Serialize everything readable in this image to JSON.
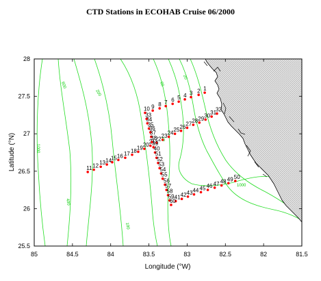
{
  "title": "CTD Stations in ECOHAB  Cruise 06/2000",
  "colors": {
    "contour": "#22dd22",
    "station": "#ff0000",
    "land": "#d8d8d8",
    "coast": "#000000"
  },
  "chart_data": {
    "type": "scatter",
    "xlabel": "Longitude (°W)",
    "ylabel": "Latitude (°N)",
    "xlim": [
      85,
      81.5
    ],
    "ylim": [
      25.5,
      28
    ],
    "xticks": [
      "85",
      "84.5",
      "84",
      "83.5",
      "83",
      "82.5",
      "82",
      "81.5"
    ],
    "yticks": [
      "25.5",
      "26",
      "26.5",
      "27",
      "27.5",
      "28"
    ],
    "contour_labels": [
      "1000",
      "600",
      "400",
      "200",
      "100",
      "60",
      "40",
      "20"
    ],
    "stations": [
      {
        "label": "1",
        "lon": 82.77,
        "lat": 27.55
      },
      {
        "label": "2",
        "lon": 82.85,
        "lat": 27.52
      },
      {
        "label": "3",
        "lon": 82.95,
        "lat": 27.49
      },
      {
        "label": "4",
        "lon": 83.03,
        "lat": 27.46
      },
      {
        "label": "5",
        "lon": 83.11,
        "lat": 27.43
      },
      {
        "label": "6",
        "lon": 83.19,
        "lat": 27.4
      },
      {
        "label": "7",
        "lon": 83.28,
        "lat": 27.37
      },
      {
        "label": "8",
        "lon": 83.36,
        "lat": 27.34
      },
      {
        "label": "9",
        "lon": 83.45,
        "lat": 27.31
      },
      {
        "label": "10",
        "lon": 83.55,
        "lat": 27.28
      },
      {
        "label": "11",
        "lon": 84.3,
        "lat": 26.49
      },
      {
        "label": "12",
        "lon": 84.22,
        "lat": 26.52
      },
      {
        "label": "13",
        "lon": 84.13,
        "lat": 26.56
      },
      {
        "label": "14",
        "lon": 84.05,
        "lat": 26.59
      },
      {
        "label": "15",
        "lon": 83.98,
        "lat": 26.62
      },
      {
        "label": "16",
        "lon": 83.9,
        "lat": 26.65
      },
      {
        "label": "17",
        "lon": 83.81,
        "lat": 26.68
      },
      {
        "label": "18",
        "lon": 83.72,
        "lat": 26.72
      },
      {
        "label": "19",
        "lon": 83.64,
        "lat": 26.76
      },
      {
        "label": "20",
        "lon": 83.56,
        "lat": 26.8
      },
      {
        "label": "21",
        "lon": 83.48,
        "lat": 26.84
      },
      {
        "label": "22",
        "lon": 83.4,
        "lat": 26.88
      },
      {
        "label": "23",
        "lon": 83.32,
        "lat": 26.92
      },
      {
        "label": "24",
        "lon": 83.24,
        "lat": 26.96
      },
      {
        "label": "25",
        "lon": 83.16,
        "lat": 27.0
      },
      {
        "label": "26",
        "lon": 83.08,
        "lat": 27.04
      },
      {
        "label": "27",
        "lon": 83.0,
        "lat": 27.08
      },
      {
        "label": "28",
        "lon": 82.92,
        "lat": 27.12
      },
      {
        "label": "29",
        "lon": 82.84,
        "lat": 27.15
      },
      {
        "label": "30",
        "lon": 82.76,
        "lat": 27.19
      },
      {
        "label": "31",
        "lon": 82.68,
        "lat": 27.23
      },
      {
        "label": "32",
        "lon": 82.61,
        "lat": 27.27
      },
      {
        "label": "33",
        "lon": 83.53,
        "lat": 27.2
      },
      {
        "label": "34",
        "lon": 83.52,
        "lat": 27.14
      },
      {
        "label": "35",
        "lon": 83.5,
        "lat": 27.07
      },
      {
        "label": "36",
        "lon": 83.48,
        "lat": 27.02
      },
      {
        "label": "37",
        "lon": 83.47,
        "lat": 26.96
      },
      {
        "label": "38",
        "lon": 83.46,
        "lat": 26.89
      },
      {
        "label": "39",
        "lon": 83.44,
        "lat": 26.82
      },
      {
        "label": "40",
        "lon": 83.42,
        "lat": 26.75
      },
      {
        "label": "41",
        "lon": 83.15,
        "lat": 26.1
      },
      {
        "label": "42",
        "lon": 83.07,
        "lat": 26.13
      },
      {
        "label": "43",
        "lon": 82.99,
        "lat": 26.16
      },
      {
        "label": "44",
        "lon": 82.91,
        "lat": 26.19
      },
      {
        "label": "45",
        "lon": 82.82,
        "lat": 26.22
      },
      {
        "label": "46",
        "lon": 82.73,
        "lat": 26.25
      },
      {
        "label": "47",
        "lon": 82.64,
        "lat": 26.28
      },
      {
        "label": "48",
        "lon": 82.55,
        "lat": 26.31
      },
      {
        "label": "49",
        "lon": 82.46,
        "lat": 26.34
      },
      {
        "label": "50",
        "lon": 82.37,
        "lat": 26.37
      },
      {
        "label": "51",
        "lon": 83.4,
        "lat": 26.68
      },
      {
        "label": "52",
        "lon": 83.38,
        "lat": 26.61
      },
      {
        "label": "53",
        "lon": 83.36,
        "lat": 26.54
      },
      {
        "label": "54",
        "lon": 83.34,
        "lat": 26.47
      },
      {
        "label": "55",
        "lon": 83.32,
        "lat": 26.4
      },
      {
        "label": "56",
        "lon": 83.29,
        "lat": 26.32
      },
      {
        "label": "57",
        "lon": 83.27,
        "lat": 26.25
      },
      {
        "label": "58",
        "lon": 83.25,
        "lat": 26.18
      },
      {
        "label": "59",
        "lon": 83.23,
        "lat": 26.11
      },
      {
        "label": "60",
        "lon": 83.21,
        "lat": 26.05
      }
    ]
  }
}
